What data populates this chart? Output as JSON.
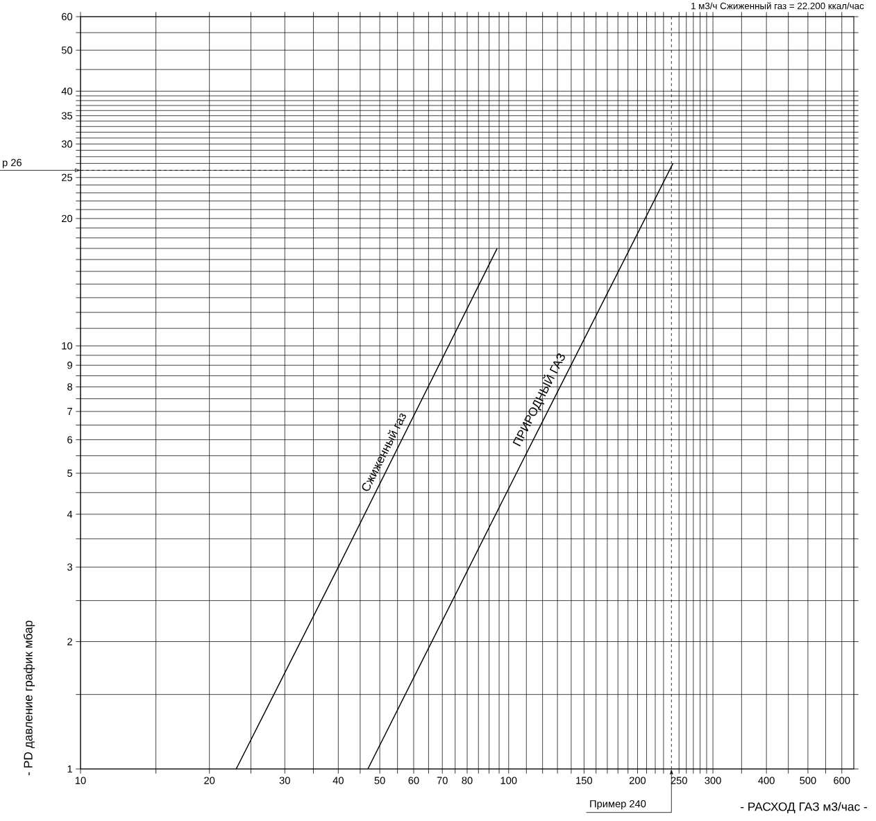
{
  "chart_data": {
    "type": "line",
    "xlabel": "- РАСХОД ГАЗ м3/час -",
    "ylabel": "- PD давление график мбар",
    "annotations": [
      "1 м3/ч Сжиженный газ = 22.200 ккал/час"
    ],
    "log": "xy",
    "grid": true,
    "legend": false,
    "marker": "none",
    "line_style": "solid",
    "xlim": [
      10,
      640
    ],
    "ylim": [
      1,
      60
    ],
    "xticks": [
      10,
      {
        "value": 15,
        "label": null
      },
      20,
      {
        "value": 25,
        "label": null
      },
      30,
      {
        "value": 35,
        "label": null
      },
      40,
      {
        "value": 45,
        "label": null
      },
      50,
      {
        "value": 55,
        "label": null
      },
      60,
      {
        "value": 65,
        "label": null
      },
      70,
      {
        "value": 75,
        "label": null
      },
      80,
      {
        "value": 85,
        "label": null
      },
      {
        "value": 90,
        "label": null
      },
      {
        "value": 95,
        "label": null
      },
      100,
      {
        "value": 110,
        "label": null
      },
      {
        "value": 120,
        "label": null
      },
      {
        "value": 130,
        "label": null
      },
      {
        "value": 140,
        "label": null
      },
      150,
      {
        "value": 160,
        "label": null
      },
      {
        "value": 170,
        "label": null
      },
      {
        "value": 180,
        "label": null
      },
      {
        "value": 190,
        "label": null
      },
      200,
      {
        "value": 210,
        "label": null
      },
      {
        "value": 220,
        "label": null
      },
      {
        "value": 230,
        "label": null
      },
      250,
      {
        "value": 260,
        "label": null
      },
      {
        "value": 270,
        "label": null
      },
      {
        "value": 280,
        "label": null
      },
      {
        "value": 290,
        "label": null
      },
      300,
      {
        "value": 350,
        "label": null
      },
      400,
      {
        "value": 450,
        "label": null
      },
      500,
      {
        "value": 550,
        "label": null
      },
      600
    ],
    "yticks": [
      1,
      {
        "value": 1.5,
        "label": null
      },
      2,
      {
        "value": 2.5,
        "label": null
      },
      3,
      {
        "value": 3.5,
        "label": null
      },
      4,
      {
        "value": 4.5,
        "label": null
      },
      5,
      {
        "value": 5.5,
        "label": null
      },
      6,
      {
        "value": 6.5,
        "label": null
      },
      7,
      {
        "value": 7.5,
        "label": null
      },
      8,
      {
        "value": 8.5,
        "label": null
      },
      9,
      {
        "value": 9.5,
        "label": null
      },
      10,
      {
        "value": 11,
        "label": null
      },
      {
        "value": 12,
        "label": null
      },
      {
        "value": 13,
        "label": null
      },
      {
        "value": 14,
        "label": null
      },
      {
        "value": 15,
        "label": null
      },
      {
        "value": 16,
        "label": null
      },
      {
        "value": 17,
        "label": null
      },
      {
        "value": 18,
        "label": null
      },
      {
        "value": 19,
        "label": null
      },
      20,
      {
        "value": 21,
        "label": null
      },
      {
        "value": 22,
        "label": null
      },
      {
        "value": 23,
        "label": null
      },
      {
        "value": 24,
        "label": null
      },
      25,
      {
        "value": 26,
        "label": null
      },
      {
        "value": 27,
        "label": null
      },
      {
        "value": 28,
        "label": null
      },
      {
        "value": 29,
        "label": null
      },
      30,
      {
        "value": 31,
        "label": null
      },
      {
        "value": 32,
        "label": null
      },
      {
        "value": 33,
        "label": null
      },
      {
        "value": 34,
        "label": null
      },
      35,
      {
        "value": 36,
        "label": null
      },
      {
        "value": 37,
        "label": null
      },
      {
        "value": 38,
        "label": null
      },
      {
        "value": 39,
        "label": null
      },
      40,
      {
        "value": 45,
        "label": null
      },
      50,
      {
        "value": 55,
        "label": null
      },
      60
    ],
    "series": [
      {
        "name": "Сжиженный газ",
        "color": "#000000",
        "x": [
          23.1,
          40,
          94
        ],
        "values": [
          1,
          3,
          17
        ]
      },
      {
        "name": "ПРИРОДНЫЙ ГАЗ",
        "color": "#000000",
        "x": [
          46.9,
          100,
          242
        ],
        "values": [
          1,
          4.6,
          27
        ]
      }
    ],
    "ref_lines": [
      {
        "axis": "y",
        "value": 26,
        "label": "p 26",
        "line_style": "dashed"
      },
      {
        "axis": "x",
        "value": 240,
        "label": "Пример 240",
        "line_style": "dashed"
      }
    ]
  }
}
